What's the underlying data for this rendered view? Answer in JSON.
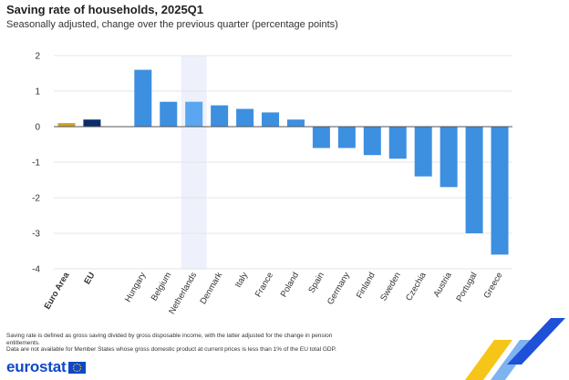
{
  "header": {
    "title": "Saving rate of households, 2025Q1",
    "subtitle": "Seasonally adjusted, change over the previous quarter (percentage points)"
  },
  "footnotes": [
    "Saving rate is defined as gross saving divided by gross disposable income, with the latter adjusted for the change in pension",
    "entitlements.",
    "Data are not available for Member States whose gross domestic product at current prices is less than 1% of the EU total GDP."
  ],
  "logo": {
    "text": "eurostat"
  },
  "colors": {
    "euro_area": "#c9a227",
    "eu": "#0b2d6b",
    "country": "#3d8fe0",
    "highlight_bar": "#5aa6f0",
    "highlight_band": "#eef1fb",
    "gridline": "#e4e4e4",
    "zero_line": "#555555"
  },
  "chart_data": {
    "type": "bar",
    "title": "Saving rate of households, 2025Q1",
    "subtitle": "Seasonally adjusted, change over the previous quarter (percentage points)",
    "categories": [
      "Euro Area",
      "EU",
      "",
      "Hungary",
      "Belgium",
      "Netherlands",
      "Denmark",
      "Italy",
      "France",
      "Poland",
      "Spain",
      "Germany",
      "Finland",
      "Sweden",
      "Czechia",
      "Austria",
      "Portugal",
      "Greece"
    ],
    "values": [
      0.1,
      0.2,
      null,
      1.6,
      0.7,
      0.7,
      0.6,
      0.5,
      0.4,
      0.2,
      -0.6,
      -0.6,
      -0.8,
      -0.9,
      -1.4,
      -1.7,
      -3.0,
      -3.6
    ],
    "bold_categories": [
      "Euro Area",
      "EU"
    ],
    "highlighted_category": "Netherlands",
    "yticks": [
      2,
      1,
      0,
      -1,
      -2,
      -3,
      -4
    ],
    "ylim": [
      -4,
      2
    ],
    "grid": true,
    "xlabel": "",
    "ylabel": ""
  }
}
